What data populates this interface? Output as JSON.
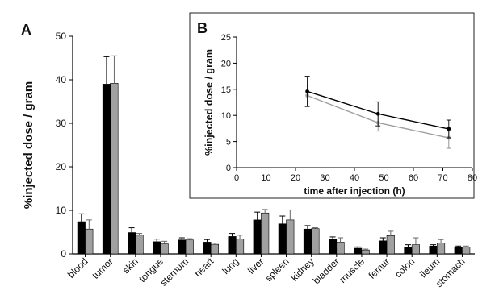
{
  "chart_data": [
    {
      "panel": "A",
      "type": "bar",
      "ylabel": "%injected dose / gram",
      "ylim": [
        0,
        50
      ],
      "yticks": [
        0,
        10,
        20,
        30,
        40,
        50
      ],
      "categories": [
        "blood",
        "tumor",
        "skin",
        "tongue",
        "sternum",
        "heart",
        "lung",
        "liver",
        "spleen",
        "kidney",
        "bladder",
        "muscle",
        "femur",
        "colon",
        "ileum",
        "stomach"
      ],
      "series": [
        {
          "color": "#000000",
          "values": [
            7.4,
            39.0,
            4.9,
            2.8,
            3.2,
            2.7,
            4.0,
            7.8,
            6.9,
            5.7,
            3.3,
            1.3,
            3.0,
            1.5,
            1.8,
            1.5
          ],
          "errors": [
            1.8,
            6.3,
            1.1,
            0.6,
            0.5,
            0.6,
            0.7,
            1.8,
            1.8,
            0.8,
            0.6,
            0.3,
            0.7,
            0.6,
            0.3,
            0.3
          ]
        },
        {
          "color": "#a0a0a0",
          "values": [
            5.7,
            39.2,
            4.3,
            2.3,
            3.2,
            2.2,
            3.4,
            9.4,
            7.8,
            5.8,
            2.7,
            0.9,
            4.2,
            2.1,
            2.5,
            1.6
          ],
          "errors": [
            2.1,
            6.3,
            0.4,
            0.6,
            0.3,
            0.3,
            0.9,
            0.8,
            2.3,
            0.2,
            1.0,
            0.2,
            1.0,
            1.6,
            0.8,
            0.2
          ]
        }
      ]
    },
    {
      "panel": "B",
      "type": "line",
      "xlabel": "time after injection (h)",
      "ylabel": "%injected dose / gram",
      "xlim": [
        0,
        80
      ],
      "ylim": [
        0,
        25
      ],
      "xticks": [
        0,
        10,
        20,
        30,
        40,
        50,
        60,
        70,
        80
      ],
      "yticks": [
        0,
        5,
        10,
        15,
        20,
        25
      ],
      "x": [
        24,
        48,
        72
      ],
      "series": [
        {
          "color": "#000000",
          "values": [
            14.6,
            10.3,
            7.4
          ],
          "errors": [
            2.9,
            2.3,
            1.7
          ]
        },
        {
          "color": "#a0a0a0",
          "values": [
            13.8,
            8.6,
            5.7
          ],
          "errors": [
            2.0,
            1.6,
            2.0
          ]
        }
      ]
    }
  ]
}
